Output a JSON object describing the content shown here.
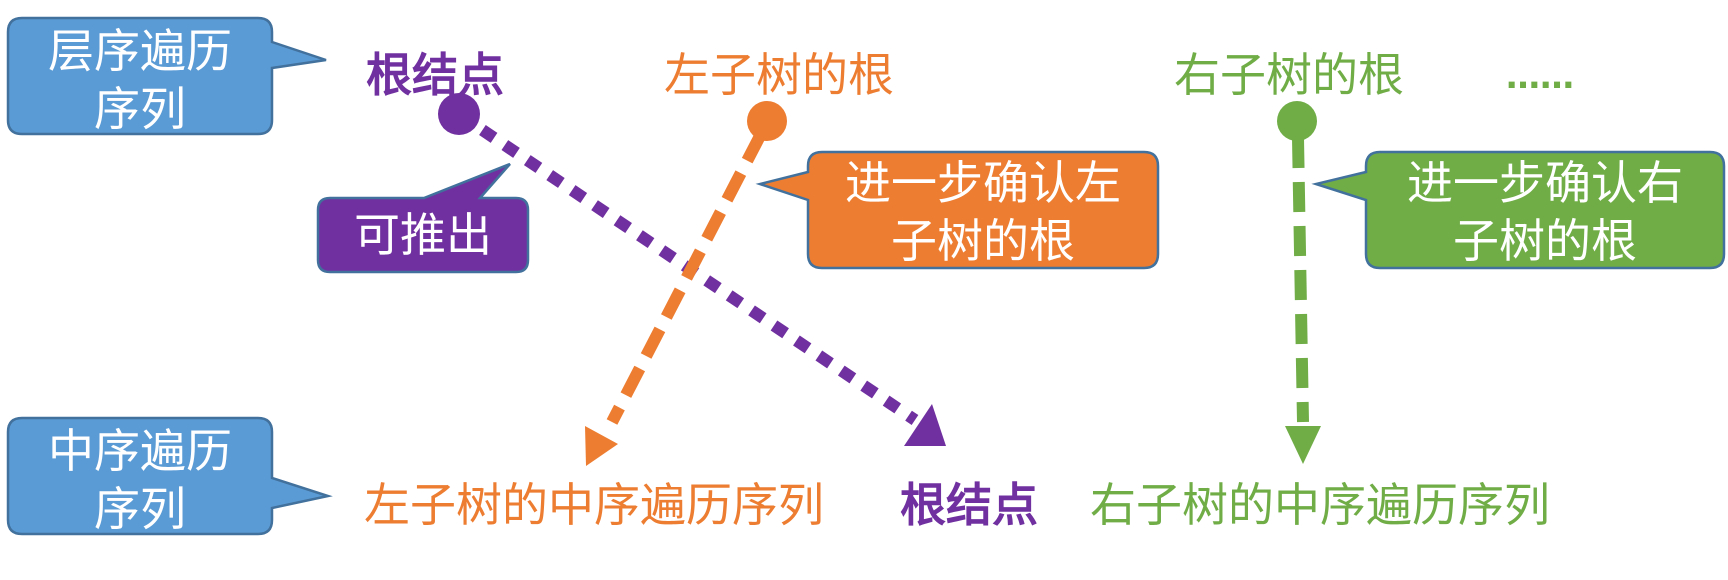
{
  "level_callout": {
    "line1": "层序遍历",
    "line2": "序列"
  },
  "inorder_callout": {
    "line1": "中序遍历",
    "line2": "序列"
  },
  "derive_callout": {
    "text": "可推出"
  },
  "left_confirm_callout": {
    "line1": "进一步确认左",
    "line2": "子树的根"
  },
  "right_confirm_callout": {
    "line1": "进一步确认右",
    "line2": "子树的根"
  },
  "top_row": {
    "root": "根结点",
    "left_root": "左子树的根",
    "right_root": "右子树的根",
    "ellipsis": "……"
  },
  "bottom_row": {
    "left_inorder": "左子树的中序遍历序列",
    "root": "根结点",
    "right_inorder": "右子树的中序遍历序列"
  },
  "colors": {
    "blue_fill": "#5B9BD5",
    "blue_stroke": "#41719C",
    "purple": "#7030A0",
    "orange": "#ED7D31",
    "green": "#70AD47"
  }
}
